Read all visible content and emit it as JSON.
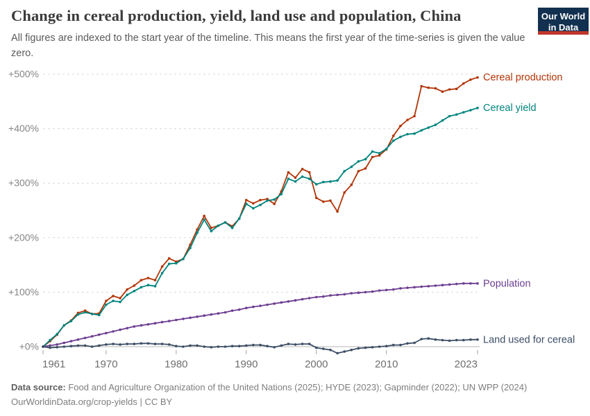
{
  "header": {
    "logo": {
      "line1": "Our World",
      "line2": "in Data",
      "bg_color": "#12304F",
      "accent_color": "#C0362C"
    }
  },
  "footer": {
    "source_label": "Data source:",
    "source_text": " Food and Agriculture Organization of the United Nations (2025); HYDE (2023); Gapminder (2022); UN WPP (2024)",
    "link": "OurWorldinData.org/crop-yields",
    "separator": " | ",
    "license": "CC BY"
  },
  "chart_data": {
    "type": "line",
    "title": "Change in cereal production, yield, land use and population, China",
    "subtitle": "All figures are indexed to the start year of the timeline. This means the first year of the time-series is given the value zero.",
    "xlabel": "",
    "ylabel": "",
    "xlim": [
      1961,
      2023
    ],
    "ylim": [
      -15,
      510
    ],
    "grid": "horizontal-dashed",
    "legend_position": "end-of-line-labels",
    "xticks": [
      1961,
      1970,
      1980,
      1990,
      2000,
      2010,
      2023
    ],
    "yticks": [
      {
        "value": 0,
        "label": "+0%"
      },
      {
        "value": 100,
        "label": "+100%"
      },
      {
        "value": 200,
        "label": "+200%"
      },
      {
        "value": 300,
        "label": "+300%"
      },
      {
        "value": 400,
        "label": "+400%"
      },
      {
        "value": 500,
        "label": "+500%"
      }
    ],
    "x": [
      1961,
      1962,
      1963,
      1964,
      1965,
      1966,
      1967,
      1968,
      1969,
      1970,
      1971,
      1972,
      1973,
      1974,
      1975,
      1976,
      1977,
      1978,
      1979,
      1980,
      1981,
      1982,
      1983,
      1984,
      1985,
      1986,
      1987,
      1988,
      1989,
      1990,
      1991,
      1992,
      1993,
      1994,
      1995,
      1996,
      1997,
      1998,
      1999,
      2000,
      2001,
      2002,
      2003,
      2004,
      2005,
      2006,
      2007,
      2008,
      2009,
      2010,
      2011,
      2012,
      2013,
      2014,
      2015,
      2016,
      2017,
      2018,
      2019,
      2020,
      2021,
      2022,
      2023
    ],
    "series": [
      {
        "name": "Cereal production",
        "color": "#B13507",
        "unit": "% change vs 1961",
        "values": [
          0,
          10,
          22,
          39,
          48,
          62,
          66,
          60,
          61,
          84,
          93,
          89,
          105,
          112,
          122,
          126,
          122,
          147,
          162,
          156,
          161,
          187,
          215,
          240,
          218,
          222,
          228,
          221,
          235,
          269,
          263,
          269,
          271,
          262,
          285,
          320,
          310,
          326,
          320,
          273,
          266,
          268,
          248,
          283,
          297,
          322,
          327,
          348,
          351,
          362,
          387,
          405,
          416,
          423,
          478,
          475,
          474,
          468,
          472,
          473,
          483,
          490,
          494
        ]
      },
      {
        "name": "Cereal yield",
        "color": "#00847E",
        "unit": "% change vs 1961",
        "values": [
          0,
          12,
          23,
          39,
          47,
          59,
          63,
          60,
          58,
          77,
          84,
          82,
          95,
          102,
          109,
          113,
          111,
          135,
          152,
          153,
          161,
          181,
          209,
          233,
          212,
          222,
          228,
          218,
          235,
          262,
          254,
          260,
          268,
          270,
          280,
          308,
          303,
          312,
          308,
          298,
          302,
          303,
          305,
          322,
          330,
          340,
          344,
          358,
          355,
          363,
          378,
          385,
          390,
          391,
          397,
          402,
          407,
          415,
          423,
          426,
          430,
          434,
          438
        ]
      },
      {
        "name": "Population",
        "color": "#6D3E91",
        "unit": "% change vs 1961",
        "values": [
          0,
          2,
          4,
          7,
          10,
          13,
          16,
          19,
          22,
          25,
          28,
          31,
          34,
          37,
          39,
          41,
          43,
          45,
          47,
          49,
          51,
          53,
          55,
          57,
          59,
          61,
          63,
          66,
          68,
          71,
          73,
          75,
          77,
          79,
          81,
          83,
          85,
          87,
          89,
          91,
          92,
          94,
          95,
          96,
          98,
          99,
          100,
          101,
          103,
          104,
          105,
          107,
          108,
          109,
          110,
          111,
          112,
          113,
          114,
          115,
          116,
          116,
          116
        ]
      },
      {
        "name": "Land used for cereal",
        "color": "#3C4E66",
        "unit": "% change vs 1961",
        "values": [
          0,
          -2,
          -1,
          0,
          1,
          2,
          2,
          0,
          2,
          4,
          5,
          4,
          5,
          5,
          6,
          6,
          5,
          5,
          4,
          1,
          0,
          2,
          2,
          0,
          -1,
          0,
          0,
          1,
          1,
          2,
          3,
          3,
          1,
          -1,
          2,
          5,
          4,
          5,
          5,
          -2,
          -4,
          -6,
          -12,
          -9,
          -6,
          -3,
          -2,
          -1,
          0,
          1,
          3,
          3,
          6,
          7,
          14,
          15,
          13,
          12,
          11,
          12,
          12,
          13,
          13
        ]
      }
    ],
    "style": {
      "grid_color": "#DADADA",
      "zero_line_color": "#B5B5B5",
      "tick_mark_color": "#A3A3A3"
    }
  }
}
